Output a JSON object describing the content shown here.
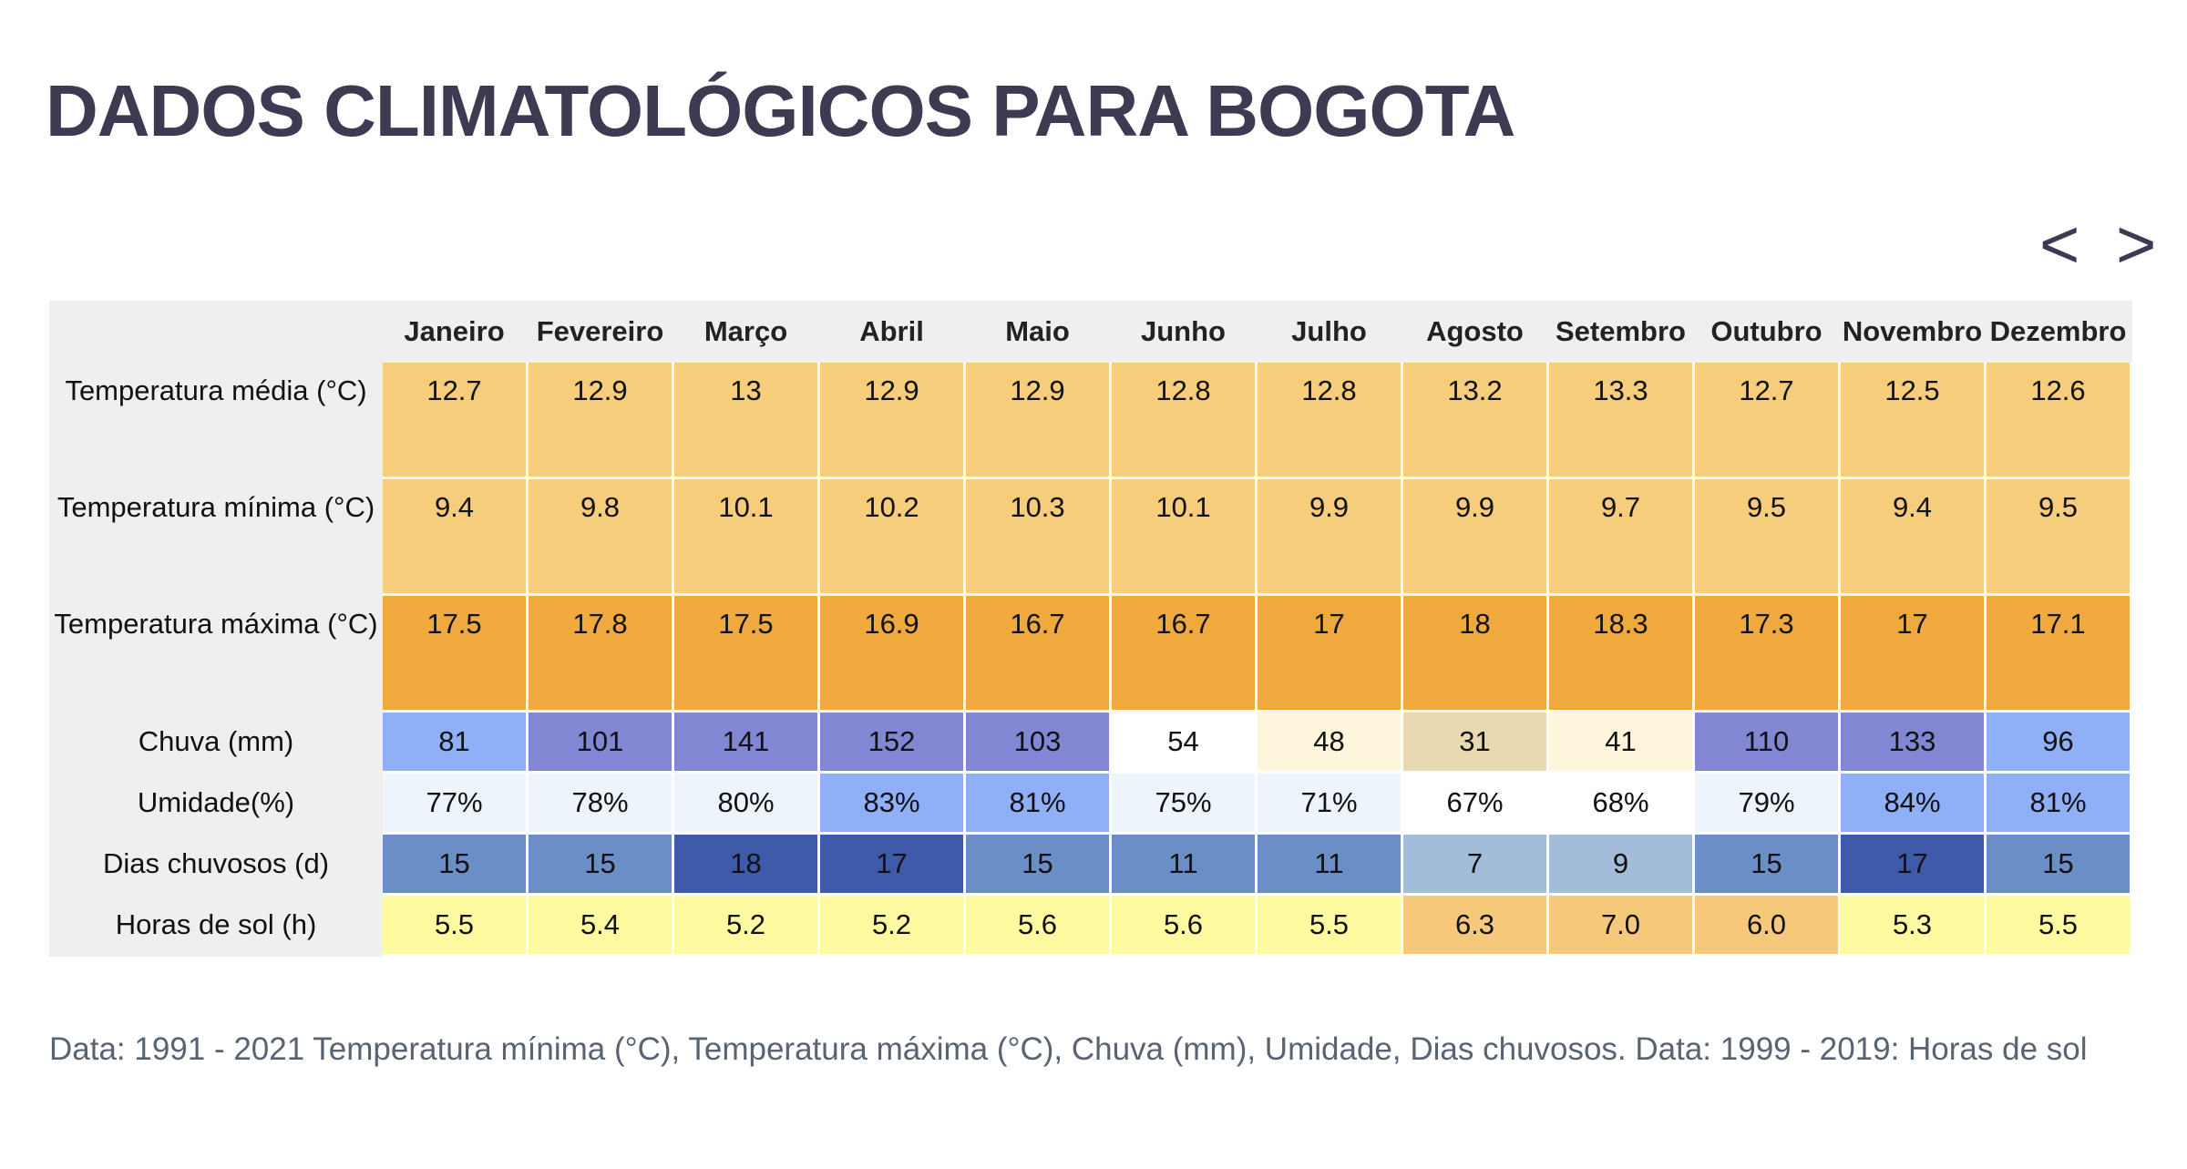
{
  "header": {
    "title": "DADOS CLIMATOLÓGICOS PARA BOGOTA"
  },
  "nav": {
    "prev": "<",
    "next": ">"
  },
  "table": {
    "columns": [
      "Janeiro",
      "Fevereiro",
      "Março",
      "Abril",
      "Maio",
      "Junho",
      "Julho",
      "Agosto",
      "Setembro",
      "Outubro",
      "Novembro",
      "Dezembro"
    ],
    "rows": [
      {
        "label": "Temperatura média (°C)",
        "cells": [
          "12.7",
          "12.9",
          "13",
          "12.9",
          "12.9",
          "12.8",
          "12.8",
          "13.2",
          "13.3",
          "12.7",
          "12.5",
          "12.6"
        ],
        "colors": [
          "#f6cd7a",
          "#f6cd7a",
          "#f6cd7a",
          "#f6cd7a",
          "#f6cd7a",
          "#f6cd7a",
          "#f6cd7a",
          "#f6cd7a",
          "#f6cd7a",
          "#f6cd7a",
          "#f6cd7a",
          "#f6cd7a"
        ]
      },
      {
        "label": "Temperatura mínima (°C)",
        "cells": [
          "9.4",
          "9.8",
          "10.1",
          "10.2",
          "10.3",
          "10.1",
          "9.9",
          "9.9",
          "9.7",
          "9.5",
          "9.4",
          "9.5"
        ],
        "colors": [
          "#f6cd7a",
          "#f6cd7a",
          "#f6cd7a",
          "#f6cd7a",
          "#f6cd7a",
          "#f6cd7a",
          "#f6cd7a",
          "#f6cd7a",
          "#f6cd7a",
          "#f6cd7a",
          "#f6cd7a",
          "#f6cd7a"
        ]
      },
      {
        "label": "Temperatura máxima (°C)",
        "cells": [
          "17.5",
          "17.8",
          "17.5",
          "16.9",
          "16.7",
          "16.7",
          "17",
          "18",
          "18.3",
          "17.3",
          "17",
          "17.1"
        ],
        "colors": [
          "#f0a93c",
          "#f0a93c",
          "#f0a93c",
          "#f0a93c",
          "#f0a93c",
          "#f0a93c",
          "#f0a93c",
          "#f0a93c",
          "#f0a93c",
          "#f0a93c",
          "#f0a93c",
          "#f0a93c"
        ]
      },
      {
        "label": "Chuva (mm)",
        "cells": [
          "81",
          "101",
          "141",
          "152",
          "103",
          "54",
          "48",
          "31",
          "41",
          "110",
          "133",
          "96"
        ],
        "colors": [
          "#8fb0f7",
          "#8387d3",
          "#8387d3",
          "#8387d3",
          "#8387d3",
          "#ffffff",
          "#fdf6dc",
          "#e9d9b0",
          "#fdf6dc",
          "#8387d3",
          "#8387d3",
          "#8fb0f7"
        ]
      },
      {
        "label": "Umidade(%)",
        "cells": [
          "77%",
          "78%",
          "80%",
          "83%",
          "81%",
          "75%",
          "71%",
          "67%",
          "68%",
          "79%",
          "84%",
          "81%"
        ],
        "colors": [
          "#eef4fb",
          "#eef4fb",
          "#eef4fb",
          "#8fb0f7",
          "#8fb0f7",
          "#eef4fb",
          "#eef4fb",
          "#ffffff",
          "#ffffff",
          "#eef4fb",
          "#8fb0f7",
          "#8fb0f7"
        ]
      },
      {
        "label": "Dias chuvosos (d)",
        "cells": [
          "15",
          "15",
          "18",
          "17",
          "15",
          "11",
          "11",
          "7",
          "9",
          "15",
          "17",
          "15"
        ],
        "colors": [
          "#6b8ec7",
          "#6b8ec7",
          "#3f5aa8",
          "#3f5aa8",
          "#6b8ec7",
          "#6b8ec7",
          "#6b8ec7",
          "#a3bcda",
          "#a3bcda",
          "#6b8ec7",
          "#3f5aa8",
          "#6b8ec7"
        ]
      },
      {
        "label": "Horas de sol (h)",
        "cells": [
          "5.5",
          "5.4",
          "5.2",
          "5.2",
          "5.6",
          "5.6",
          "5.5",
          "6.3",
          "7.0",
          "6.0",
          "5.3",
          "5.5"
        ],
        "colors": [
          "#fdfaa0",
          "#fdfaa0",
          "#fdfaa0",
          "#fdfaa0",
          "#fdfaa0",
          "#fdfaa0",
          "#fdfaa0",
          "#f6c87a",
          "#f6c87a",
          "#f6c87a",
          "#fdfaa0",
          "#fdfaa0"
        ]
      }
    ]
  },
  "footnote": "Data: 1991 - 2021 Temperatura mínima (°C), Temperatura máxima (°C), Chuva (mm), Umidade, Dias chuvosos. Data: 1999 - 2019: Horas de sol"
}
